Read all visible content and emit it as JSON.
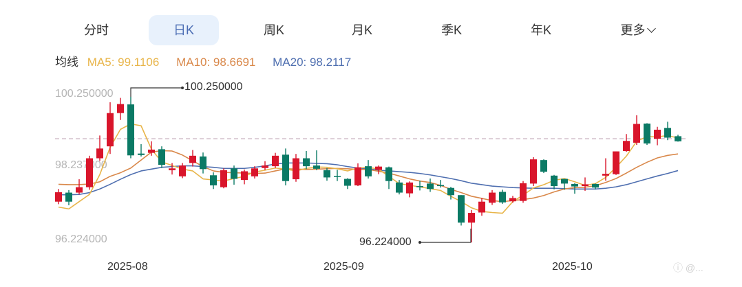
{
  "tabs": [
    {
      "label": "分时",
      "active": false
    },
    {
      "label": "日K",
      "active": true
    },
    {
      "label": "周K",
      "active": false
    },
    {
      "label": "月K",
      "active": false
    },
    {
      "label": "季K",
      "active": false
    },
    {
      "label": "年K",
      "active": false
    },
    {
      "label": "更多",
      "active": false,
      "dropdown": true
    }
  ],
  "ma_legend": {
    "label": "均线",
    "ma5": "MA5: 99.1106",
    "ma10": "MA10: 98.6691",
    "ma20": "MA20: 98.2117"
  },
  "colors": {
    "up": "#d9152b",
    "down": "#0b7a65",
    "ma5": "#e8b54a",
    "ma10": "#d9884a",
    "ma20": "#4f6fb0",
    "active_tab_bg": "#e8f1fc",
    "active_tab_text": "#4a6cb3"
  },
  "y_axis": {
    "labels": [
      "100.250000",
      "98.237000",
      "96.224000"
    ]
  },
  "x_axis": {
    "labels": [
      "2025-08",
      "2025-09",
      "2025-10"
    ]
  },
  "annotations": {
    "max": "100.250000",
    "min": "96.224000"
  },
  "watermark": "ⓘ @...",
  "chart_data": {
    "type": "candlestick",
    "title": "",
    "xlabel": "",
    "ylabel": "",
    "ylim": [
      96.224,
      100.25
    ],
    "x_tick_labels": [
      "2025-08",
      "2025-09",
      "2025-10"
    ],
    "y_tick_labels": [
      100.25,
      98.237,
      96.224
    ],
    "max_annotation": 100.25,
    "min_annotation": 96.224,
    "reference_line": 99.0,
    "legend": [
      "MA5: 99.1106",
      "MA10: 98.6691",
      "MA20: 98.2117"
    ],
    "candles": [
      {
        "o": 97.35,
        "c": 97.61,
        "h": 97.7,
        "l": 97.28
      },
      {
        "o": 97.6,
        "c": 97.35,
        "h": 97.67,
        "l": 97.25
      },
      {
        "o": 97.6,
        "c": 97.75,
        "h": 97.97,
        "l": 97.55
      },
      {
        "o": 97.75,
        "c": 98.55,
        "h": 98.62,
        "l": 97.68
      },
      {
        "o": 98.55,
        "c": 98.82,
        "h": 99.18,
        "l": 98.48
      },
      {
        "o": 98.88,
        "c": 99.8,
        "h": 100.1,
        "l": 98.67
      },
      {
        "o": 99.8,
        "c": 100.05,
        "h": 100.22,
        "l": 99.61
      },
      {
        "o": 100.04,
        "c": 98.63,
        "h": 100.25,
        "l": 98.55
      },
      {
        "o": 98.68,
        "c": 98.64,
        "h": 98.94,
        "l": 98.6
      },
      {
        "o": 98.7,
        "c": 98.79,
        "h": 99.02,
        "l": 98.62
      },
      {
        "o": 98.8,
        "c": 98.37,
        "h": 98.88,
        "l": 98.28
      },
      {
        "o": 98.22,
        "c": 98.27,
        "h": 98.42,
        "l": 98.1
      },
      {
        "o": 98.05,
        "c": 98.35,
        "h": 98.42,
        "l": 98.0
      },
      {
        "o": 98.42,
        "c": 98.62,
        "h": 98.78,
        "l": 98.32
      },
      {
        "o": 98.6,
        "c": 98.25,
        "h": 98.71,
        "l": 98.13
      },
      {
        "o": 98.08,
        "c": 97.8,
        "h": 98.16,
        "l": 97.7
      },
      {
        "o": 97.75,
        "c": 98.22,
        "h": 98.27,
        "l": 97.72
      },
      {
        "o": 98.27,
        "c": 97.98,
        "h": 98.35,
        "l": 97.82
      },
      {
        "o": 97.95,
        "c": 98.19,
        "h": 98.24,
        "l": 97.83
      },
      {
        "o": 98.05,
        "c": 98.27,
        "h": 98.33,
        "l": 97.99
      },
      {
        "o": 98.28,
        "c": 98.35,
        "h": 98.47,
        "l": 98.22
      },
      {
        "o": 98.33,
        "c": 98.62,
        "h": 98.7,
        "l": 98.28
      },
      {
        "o": 98.65,
        "c": 97.92,
        "h": 98.82,
        "l": 97.8
      },
      {
        "o": 97.97,
        "c": 98.55,
        "h": 98.67,
        "l": 97.9
      },
      {
        "o": 98.55,
        "c": 98.33,
        "h": 98.75,
        "l": 98.25
      },
      {
        "o": 98.35,
        "c": 98.26,
        "h": 98.77,
        "l": 98.22
      },
      {
        "o": 98.22,
        "c": 98.02,
        "h": 98.28,
        "l": 97.93
      },
      {
        "o": 98.06,
        "c": 98.05,
        "h": 98.23,
        "l": 97.92
      },
      {
        "o": 97.98,
        "c": 97.79,
        "h": 98.0,
        "l": 97.7
      },
      {
        "o": 97.8,
        "c": 98.3,
        "h": 98.41,
        "l": 97.78
      },
      {
        "o": 98.33,
        "c": 98.05,
        "h": 98.5,
        "l": 97.99
      },
      {
        "o": 98.23,
        "c": 98.32,
        "h": 98.35,
        "l": 98.11
      },
      {
        "o": 98.3,
        "c": 97.92,
        "h": 98.32,
        "l": 97.7
      },
      {
        "o": 97.88,
        "c": 97.6,
        "h": 97.95,
        "l": 97.55
      },
      {
        "o": 97.58,
        "c": 97.88,
        "h": 97.91,
        "l": 97.47
      },
      {
        "o": 97.78,
        "c": 97.75,
        "h": 97.93,
        "l": 97.66
      },
      {
        "o": 97.85,
        "c": 97.7,
        "h": 97.99,
        "l": 97.62
      },
      {
        "o": 97.81,
        "c": 97.78,
        "h": 97.95,
        "l": 97.74
      },
      {
        "o": 97.73,
        "c": 97.53,
        "h": 97.76,
        "l": 97.41
      },
      {
        "o": 97.53,
        "c": 96.77,
        "h": 97.53,
        "l": 96.69
      },
      {
        "o": 96.77,
        "c": 97.04,
        "h": 97.12,
        "l": 96.22
      },
      {
        "o": 97.05,
        "c": 97.35,
        "h": 97.45,
        "l": 96.96
      },
      {
        "o": 97.32,
        "c": 97.6,
        "h": 97.67,
        "l": 97.26
      },
      {
        "o": 97.62,
        "c": 97.33,
        "h": 97.68,
        "l": 97.29
      },
      {
        "o": 97.36,
        "c": 97.45,
        "h": 97.51,
        "l": 97.32
      },
      {
        "o": 97.37,
        "c": 97.86,
        "h": 97.92,
        "l": 97.32
      },
      {
        "o": 97.85,
        "c": 98.52,
        "h": 98.58,
        "l": 97.78
      },
      {
        "o": 98.5,
        "c": 98.18,
        "h": 98.52,
        "l": 98.14
      },
      {
        "o": 98.07,
        "c": 97.78,
        "h": 98.09,
        "l": 97.69
      },
      {
        "o": 97.98,
        "c": 97.85,
        "h": 97.98,
        "l": 97.68
      },
      {
        "o": 97.84,
        "c": 97.77,
        "h": 97.86,
        "l": 97.57
      },
      {
        "o": 97.78,
        "c": 97.83,
        "h": 98.02,
        "l": 97.65
      },
      {
        "o": 97.84,
        "c": 97.74,
        "h": 97.85,
        "l": 97.69
      },
      {
        "o": 98.07,
        "c": 98.12,
        "h": 98.55,
        "l": 97.93
      },
      {
        "o": 98.11,
        "c": 98.74,
        "h": 98.74,
        "l": 98.09
      },
      {
        "o": 98.75,
        "c": 99.03,
        "h": 99.22,
        "l": 98.73
      },
      {
        "o": 98.98,
        "c": 99.5,
        "h": 99.74,
        "l": 98.92
      },
      {
        "o": 99.51,
        "c": 98.96,
        "h": 99.52,
        "l": 98.92
      },
      {
        "o": 99.09,
        "c": 99.34,
        "h": 99.42,
        "l": 98.91
      },
      {
        "o": 99.39,
        "c": 99.12,
        "h": 99.56,
        "l": 99.05
      },
      {
        "o": 99.16,
        "c": 99.02,
        "h": 99.2,
        "l": 99.01
      }
    ],
    "ma5": [
      97.2,
      97.15,
      97.35,
      97.55,
      98.1,
      98.85,
      99.35,
      99.5,
      99.45,
      98.8,
      98.45,
      98.35,
      98.25,
      98.2,
      97.98,
      97.95,
      97.92,
      97.99,
      98.05,
      98.17,
      98.22,
      98.28,
      98.25,
      98.2,
      98.27,
      98.31,
      98.3,
      98.26,
      98.2,
      98.28,
      98.3,
      98.25,
      98.05,
      97.85,
      97.8,
      97.76,
      97.71,
      97.66,
      97.5,
      97.35,
      97.18,
      97.08,
      97.05,
      97.03,
      97.35,
      97.53,
      97.73,
      97.82,
      97.94,
      97.99,
      97.9,
      97.8,
      97.85,
      98.02,
      98.3,
      98.61,
      99.02,
      99.15,
      99.14,
      99.18,
      99.11
    ],
    "ma10": [
      97.83,
      97.82,
      97.82,
      97.84,
      97.9,
      98.05,
      98.15,
      98.28,
      98.5,
      98.72,
      98.76,
      98.75,
      98.64,
      98.48,
      98.32,
      98.2,
      98.16,
      98.15,
      98.14,
      98.13,
      98.14,
      98.2,
      98.26,
      98.25,
      98.24,
      98.25,
      98.26,
      98.27,
      98.26,
      98.24,
      98.24,
      98.19,
      98.14,
      98.06,
      97.98,
      97.92,
      97.88,
      97.8,
      97.69,
      97.6,
      97.5,
      97.44,
      97.38,
      97.35,
      97.38,
      97.41,
      97.45,
      97.52,
      97.62,
      97.7,
      97.74,
      97.75,
      97.79,
      97.88,
      97.99,
      98.14,
      98.3,
      98.44,
      98.56,
      98.63,
      98.67
    ],
    "ma20": [
      97.54,
      97.54,
      97.55,
      97.6,
      97.7,
      97.83,
      97.97,
      98.1,
      98.2,
      98.25,
      98.3,
      98.32,
      98.34,
      98.34,
      98.32,
      98.3,
      98.27,
      98.27,
      98.27,
      98.3,
      98.34,
      98.39,
      98.42,
      98.42,
      98.42,
      98.41,
      98.4,
      98.37,
      98.32,
      98.28,
      98.26,
      98.22,
      98.2,
      98.18,
      98.16,
      98.13,
      98.09,
      98.04,
      97.99,
      97.93,
      97.86,
      97.82,
      97.78,
      97.76,
      97.74,
      97.73,
      97.72,
      97.72,
      97.72,
      97.71,
      97.7,
      97.7,
      97.7,
      97.72,
      97.76,
      97.82,
      97.9,
      97.98,
      98.06,
      98.13,
      98.21
    ]
  }
}
